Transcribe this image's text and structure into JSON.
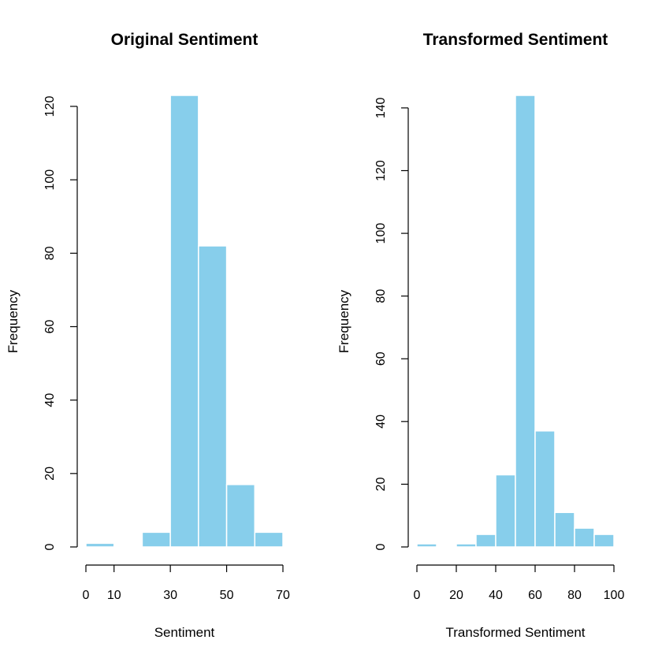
{
  "chart_data": [
    {
      "type": "bar",
      "title": "Original Sentiment",
      "xlabel": "Sentiment",
      "ylabel": "Frequency",
      "bins": [
        [
          0,
          10
        ],
        [
          10,
          20
        ],
        [
          20,
          30
        ],
        [
          30,
          40
        ],
        [
          40,
          50
        ],
        [
          50,
          60
        ],
        [
          60,
          70
        ]
      ],
      "values": [
        1,
        0,
        4,
        123,
        82,
        17,
        4
      ],
      "xticks": [
        0,
        10,
        30,
        50,
        70
      ],
      "xlim": [
        0,
        70
      ],
      "yticks": [
        0,
        20,
        40,
        60,
        80,
        100,
        120
      ],
      "ylim": [
        0,
        123
      ],
      "grid": false,
      "bar_color": "#87ceeb",
      "bar_border": "#ffffff"
    },
    {
      "type": "bar",
      "title": "Transformed Sentiment",
      "xlabel": "Transformed Sentiment",
      "ylabel": "Frequency",
      "bins": [
        [
          0,
          10
        ],
        [
          10,
          20
        ],
        [
          20,
          30
        ],
        [
          30,
          40
        ],
        [
          40,
          50
        ],
        [
          50,
          60
        ],
        [
          60,
          70
        ],
        [
          70,
          80
        ],
        [
          80,
          90
        ],
        [
          90,
          100
        ]
      ],
      "values": [
        1,
        0,
        1,
        4,
        23,
        144,
        37,
        11,
        6,
        4
      ],
      "xticks": [
        0,
        20,
        40,
        60,
        80,
        100
      ],
      "xlim": [
        0,
        100
      ],
      "yticks": [
        0,
        20,
        40,
        60,
        80,
        100,
        120,
        140
      ],
      "ylim": [
        0,
        144
      ],
      "grid": false,
      "bar_color": "#87ceeb",
      "bar_border": "#ffffff"
    }
  ]
}
